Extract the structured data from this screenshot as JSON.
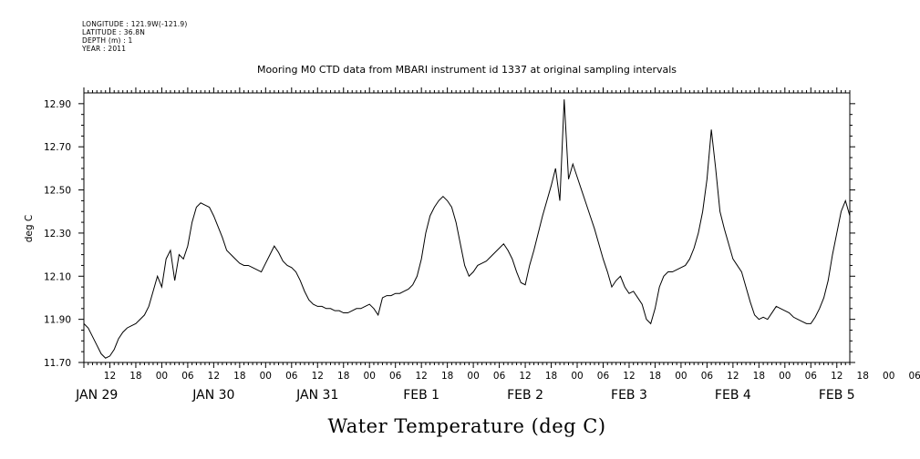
{
  "header": {
    "longitude": "LONGITUDE : 121.9W(-121.9)",
    "latitude": "LATITUDE : 36.8N",
    "depth": "DEPTH (m) : 1",
    "year": "YEAR : 2011"
  },
  "chart_data": {
    "type": "line",
    "title": "Mooring M0 CTD data from MBARI instrument id 1337 at original sampling intervals",
    "xlabel": "Water Temperature (deg C)",
    "ylabel": "deg C",
    "ylim": [
      11.7,
      12.95
    ],
    "xlim_hours": [
      0,
      177
    ],
    "x_start": "JAN 29 2011 06:00",
    "y_ticks": [
      "11.70",
      "11.90",
      "12.10",
      "12.30",
      "12.50",
      "12.70",
      "12.90"
    ],
    "hour_ticks": [
      "12",
      "18",
      "00",
      "06",
      "12",
      "18",
      "00",
      "06",
      "12",
      "18",
      "00",
      "06",
      "12",
      "18",
      "00",
      "06",
      "12",
      "18",
      "00",
      "06",
      "12",
      "18",
      "00",
      "06",
      "12",
      "18",
      "00",
      "06",
      "12",
      "18",
      "00",
      "06"
    ],
    "day_labels": [
      "JAN 29",
      "JAN 30",
      "JAN 31",
      "FEB  1",
      "FEB  2",
      "FEB  3",
      "FEB  4",
      "FEB  5"
    ],
    "series": [
      {
        "values": [
          [
            0,
            11.88
          ],
          [
            1,
            11.86
          ],
          [
            2,
            11.82
          ],
          [
            3,
            11.78
          ],
          [
            4,
            11.74
          ],
          [
            5,
            11.72
          ],
          [
            6,
            11.73
          ],
          [
            7,
            11.76
          ],
          [
            8,
            11.81
          ],
          [
            9,
            11.84
          ],
          [
            10,
            11.86
          ],
          [
            11,
            11.87
          ],
          [
            12,
            11.88
          ],
          [
            13,
            11.9
          ],
          [
            14,
            11.92
          ],
          [
            15,
            11.96
          ],
          [
            16,
            12.03
          ],
          [
            17,
            12.1
          ],
          [
            18,
            12.05
          ],
          [
            19,
            12.18
          ],
          [
            20,
            12.22
          ],
          [
            21,
            12.08
          ],
          [
            22,
            12.2
          ],
          [
            23,
            12.18
          ],
          [
            24,
            12.24
          ],
          [
            25,
            12.35
          ],
          [
            26,
            12.42
          ],
          [
            27,
            12.44
          ],
          [
            28,
            12.43
          ],
          [
            29,
            12.42
          ],
          [
            30,
            12.38
          ],
          [
            31,
            12.33
          ],
          [
            32,
            12.28
          ],
          [
            33,
            12.22
          ],
          [
            34,
            12.2
          ],
          [
            35,
            12.18
          ],
          [
            36,
            12.16
          ],
          [
            37,
            12.15
          ],
          [
            38,
            12.15
          ],
          [
            39,
            12.14
          ],
          [
            40,
            12.13
          ],
          [
            41,
            12.12
          ],
          [
            42,
            12.16
          ],
          [
            43,
            12.2
          ],
          [
            44,
            12.24
          ],
          [
            45,
            12.21
          ],
          [
            46,
            12.17
          ],
          [
            47,
            12.15
          ],
          [
            48,
            12.14
          ],
          [
            49,
            12.12
          ],
          [
            50,
            12.08
          ],
          [
            51,
            12.03
          ],
          [
            52,
            11.99
          ],
          [
            53,
            11.97
          ],
          [
            54,
            11.96
          ],
          [
            55,
            11.96
          ],
          [
            56,
            11.95
          ],
          [
            57,
            11.95
          ],
          [
            58,
            11.94
          ],
          [
            59,
            11.94
          ],
          [
            60,
            11.93
          ],
          [
            61,
            11.93
          ],
          [
            62,
            11.94
          ],
          [
            63,
            11.95
          ],
          [
            64,
            11.95
          ],
          [
            65,
            11.96
          ],
          [
            66,
            11.97
          ],
          [
            67,
            11.95
          ],
          [
            68,
            11.92
          ],
          [
            69,
            12.0
          ],
          [
            70,
            12.01
          ],
          [
            71,
            12.01
          ],
          [
            72,
            12.02
          ],
          [
            73,
            12.02
          ],
          [
            74,
            12.03
          ],
          [
            75,
            12.04
          ],
          [
            76,
            12.06
          ],
          [
            77,
            12.1
          ],
          [
            78,
            12.18
          ],
          [
            79,
            12.3
          ],
          [
            80,
            12.38
          ],
          [
            81,
            12.42
          ],
          [
            82,
            12.45
          ],
          [
            83,
            12.47
          ],
          [
            84,
            12.45
          ],
          [
            85,
            12.42
          ],
          [
            86,
            12.35
          ],
          [
            87,
            12.25
          ],
          [
            88,
            12.15
          ],
          [
            89,
            12.1
          ],
          [
            90,
            12.12
          ],
          [
            91,
            12.15
          ],
          [
            92,
            12.16
          ],
          [
            93,
            12.17
          ],
          [
            94,
            12.19
          ],
          [
            95,
            12.21
          ],
          [
            96,
            12.23
          ],
          [
            97,
            12.25
          ],
          [
            98,
            12.22
          ],
          [
            99,
            12.18
          ],
          [
            100,
            12.12
          ],
          [
            101,
            12.07
          ],
          [
            102,
            12.06
          ],
          [
            103,
            12.15
          ],
          [
            104,
            12.22
          ],
          [
            105,
            12.3
          ],
          [
            106,
            12.38
          ],
          [
            107,
            12.45
          ],
          [
            108,
            12.52
          ],
          [
            109,
            12.6
          ],
          [
            110,
            12.45
          ],
          [
            111,
            12.92
          ],
          [
            112,
            12.55
          ],
          [
            113,
            12.62
          ],
          [
            114,
            12.56
          ],
          [
            115,
            12.5
          ],
          [
            116,
            12.44
          ],
          [
            117,
            12.38
          ],
          [
            118,
            12.32
          ],
          [
            119,
            12.25
          ],
          [
            120,
            12.18
          ],
          [
            121,
            12.12
          ],
          [
            122,
            12.05
          ],
          [
            123,
            12.08
          ],
          [
            124,
            12.1
          ],
          [
            125,
            12.05
          ],
          [
            126,
            12.02
          ],
          [
            127,
            12.03
          ],
          [
            128,
            12.0
          ],
          [
            129,
            11.97
          ],
          [
            130,
            11.9
          ],
          [
            131,
            11.88
          ],
          [
            132,
            11.95
          ],
          [
            133,
            12.05
          ],
          [
            134,
            12.1
          ],
          [
            135,
            12.12
          ],
          [
            136,
            12.12
          ],
          [
            137,
            12.13
          ],
          [
            138,
            12.14
          ],
          [
            139,
            12.15
          ],
          [
            140,
            12.18
          ],
          [
            141,
            12.23
          ],
          [
            142,
            12.3
          ],
          [
            143,
            12.4
          ],
          [
            144,
            12.55
          ],
          [
            145,
            12.78
          ],
          [
            146,
            12.6
          ],
          [
            147,
            12.4
          ],
          [
            148,
            12.32
          ],
          [
            149,
            12.25
          ],
          [
            150,
            12.18
          ],
          [
            151,
            12.15
          ],
          [
            152,
            12.12
          ],
          [
            153,
            12.05
          ],
          [
            154,
            11.98
          ],
          [
            155,
            11.92
          ],
          [
            156,
            11.9
          ],
          [
            157,
            11.91
          ],
          [
            158,
            11.9
          ],
          [
            159,
            11.93
          ],
          [
            160,
            11.96
          ],
          [
            161,
            11.95
          ],
          [
            162,
            11.94
          ],
          [
            163,
            11.93
          ],
          [
            164,
            11.91
          ],
          [
            165,
            11.9
          ],
          [
            166,
            11.89
          ],
          [
            167,
            11.88
          ],
          [
            168,
            11.88
          ],
          [
            169,
            11.91
          ],
          [
            170,
            11.95
          ],
          [
            171,
            12.0
          ],
          [
            172,
            12.08
          ],
          [
            173,
            12.2
          ],
          [
            174,
            12.3
          ],
          [
            175,
            12.4
          ],
          [
            176,
            12.45
          ],
          [
            177,
            12.38
          ]
        ]
      }
    ]
  },
  "colors": {
    "line": "#000000",
    "axis": "#000000",
    "background": "#ffffff"
  }
}
